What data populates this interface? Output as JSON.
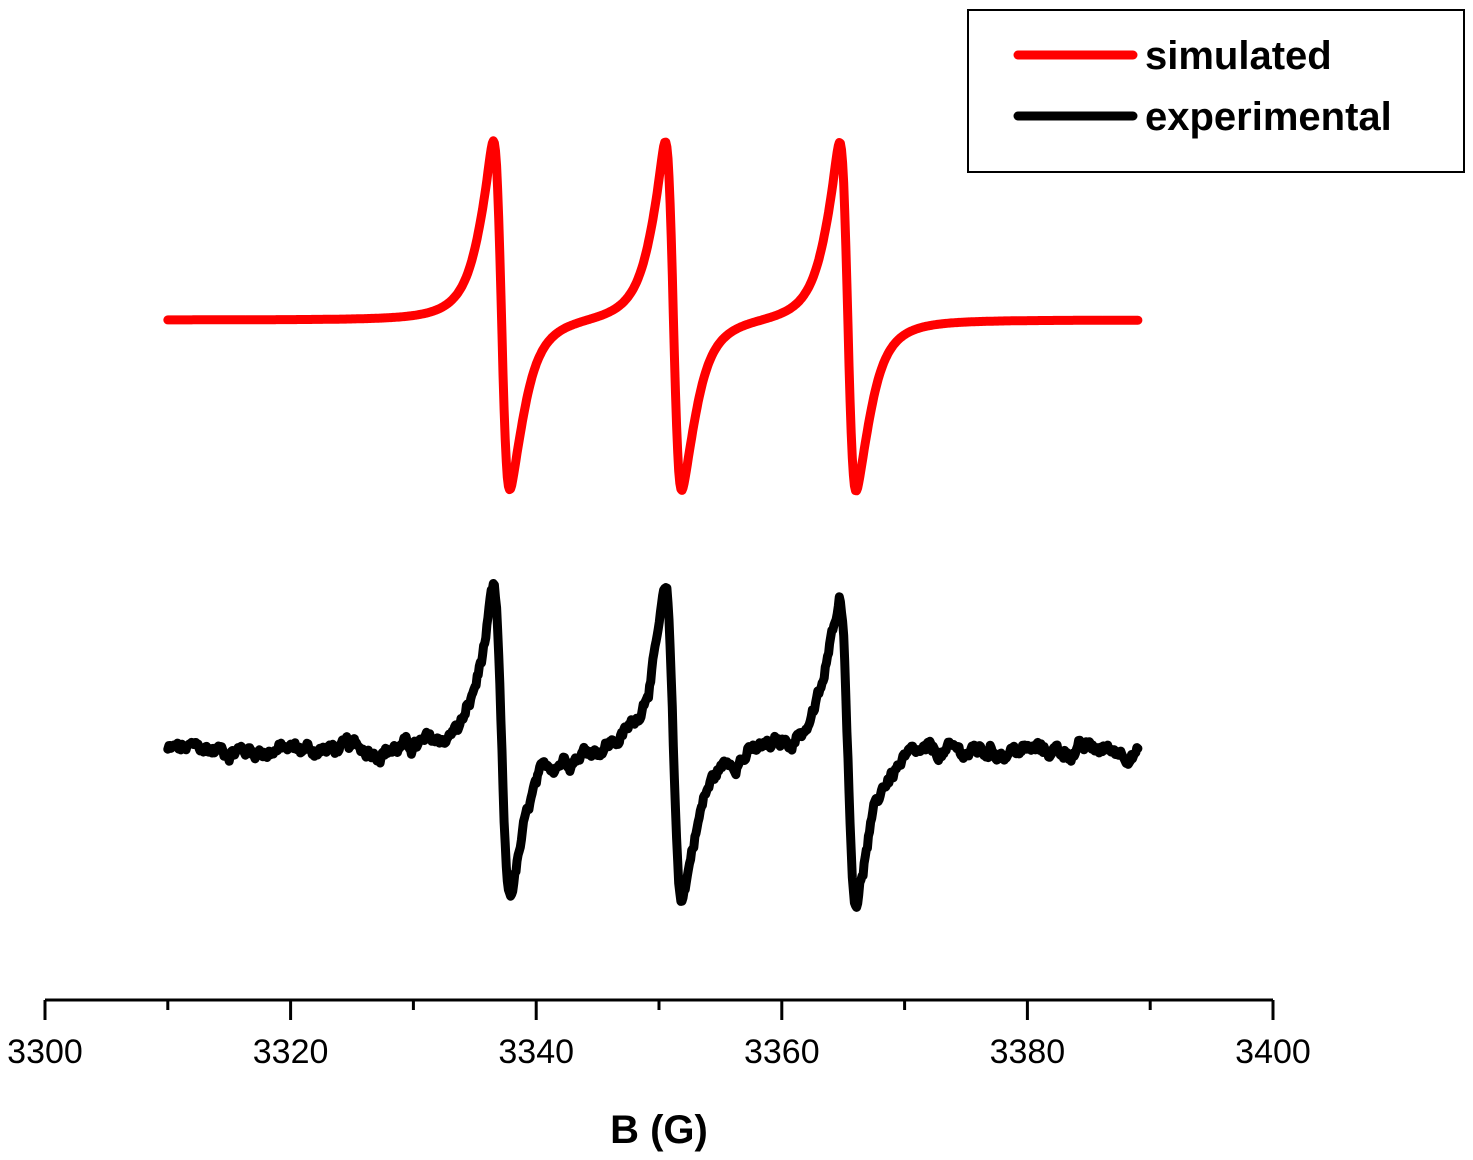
{
  "chart_data": {
    "type": "line",
    "xlabel": "B (G)",
    "ylabel": "",
    "xlim": [
      3300,
      3400
    ],
    "x_ticks": [
      "3300",
      "3320",
      "3340",
      "3360",
      "3380",
      "3400"
    ],
    "minor_tick_step": 10,
    "grid": false,
    "legend_position": "top-right",
    "x_range": [
      3310,
      3389
    ],
    "line_centers": [
      3337.2,
      3351.2,
      3365.4
    ],
    "series": [
      {
        "name": "simulated",
        "color": "#ff0000"
      },
      {
        "name": "experimental",
        "color": "#000000"
      }
    ]
  }
}
